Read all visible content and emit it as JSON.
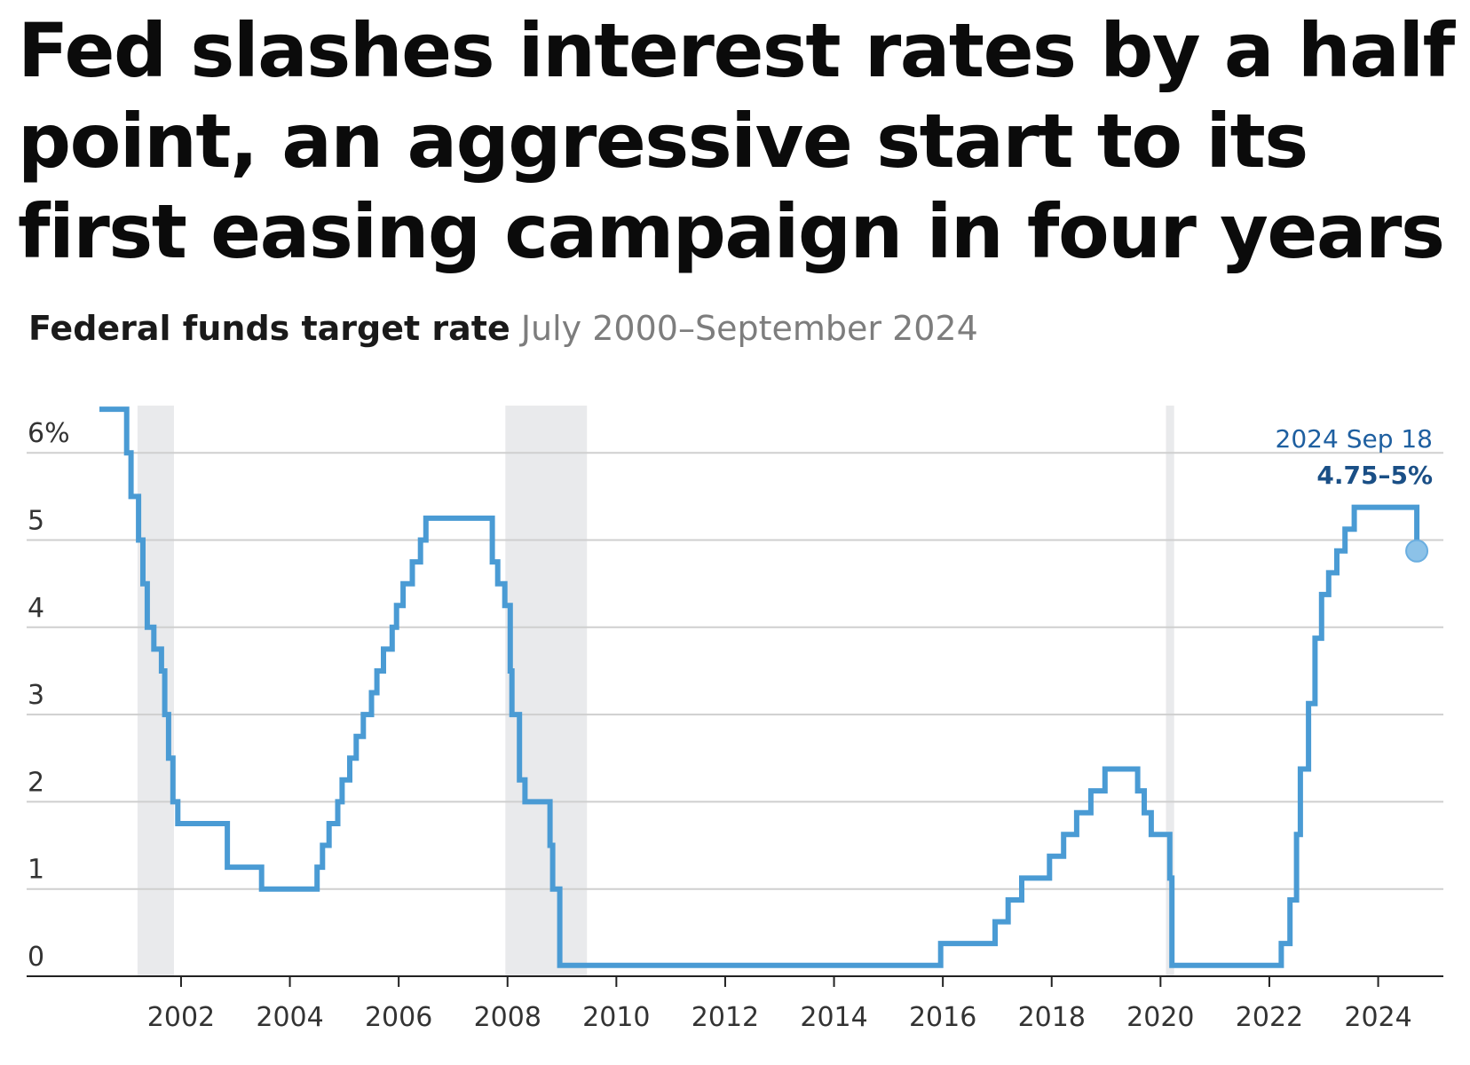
{
  "headline": "Fed slashes interest rates by a half point, an aggressive start to its first easing campaign in four years",
  "chart_data": {
    "type": "line",
    "title": "Federal funds target rate",
    "subtitle": "July 2000–September 2024",
    "xlabel": "",
    "ylabel": "",
    "xlim": [
      2000.5,
      2024.9
    ],
    "ylim": [
      0,
      6.5
    ],
    "x_ticks": [
      2002,
      2004,
      2006,
      2008,
      2010,
      2012,
      2014,
      2016,
      2018,
      2020,
      2022,
      2024
    ],
    "x_tick_labels": [
      "2002",
      "2004",
      "2006",
      "2008",
      "2010",
      "2012",
      "2014",
      "2016",
      "2018",
      "2020",
      "2022",
      "2024"
    ],
    "y_ticks": [
      0,
      1,
      2,
      3,
      4,
      5,
      6
    ],
    "y_tick_labels": [
      "0",
      "1",
      "2",
      "3",
      "4",
      "5",
      "6%"
    ],
    "grid": true,
    "line_color": "#4a9bd4",
    "recession_color": "#e9eaec",
    "recessions": [
      [
        2001.2,
        2001.87
      ],
      [
        2007.96,
        2009.46
      ],
      [
        2020.1,
        2020.25
      ]
    ],
    "series": [
      {
        "points": [
          [
            2000.5,
            6.5
          ],
          [
            2001.0,
            6.0
          ],
          [
            2001.08,
            5.5
          ],
          [
            2001.22,
            5.0
          ],
          [
            2001.3,
            4.5
          ],
          [
            2001.38,
            4.0
          ],
          [
            2001.5,
            3.75
          ],
          [
            2001.64,
            3.5
          ],
          [
            2001.7,
            3.0
          ],
          [
            2001.77,
            2.5
          ],
          [
            2001.85,
            2.0
          ],
          [
            2001.94,
            1.75
          ],
          [
            2002.85,
            1.25
          ],
          [
            2003.48,
            1.0
          ],
          [
            2004.5,
            1.25
          ],
          [
            2004.6,
            1.5
          ],
          [
            2004.72,
            1.75
          ],
          [
            2004.88,
            2.0
          ],
          [
            2004.96,
            2.25
          ],
          [
            2005.1,
            2.5
          ],
          [
            2005.22,
            2.75
          ],
          [
            2005.35,
            3.0
          ],
          [
            2005.5,
            3.25
          ],
          [
            2005.6,
            3.5
          ],
          [
            2005.72,
            3.75
          ],
          [
            2005.88,
            4.0
          ],
          [
            2005.96,
            4.25
          ],
          [
            2006.08,
            4.5
          ],
          [
            2006.25,
            4.75
          ],
          [
            2006.4,
            5.0
          ],
          [
            2006.5,
            5.25
          ],
          [
            2007.72,
            4.75
          ],
          [
            2007.82,
            4.5
          ],
          [
            2007.95,
            4.25
          ],
          [
            2008.05,
            3.5
          ],
          [
            2008.08,
            3.0
          ],
          [
            2008.22,
            2.25
          ],
          [
            2008.32,
            2.0
          ],
          [
            2008.78,
            1.5
          ],
          [
            2008.83,
            1.0
          ],
          [
            2008.96,
            0.125
          ],
          [
            2015.96,
            0.375
          ],
          [
            2016.96,
            0.625
          ],
          [
            2017.2,
            0.875
          ],
          [
            2017.45,
            1.125
          ],
          [
            2017.96,
            1.375
          ],
          [
            2018.22,
            1.625
          ],
          [
            2018.46,
            1.875
          ],
          [
            2018.72,
            2.125
          ],
          [
            2018.98,
            2.375
          ],
          [
            2019.58,
            2.125
          ],
          [
            2019.7,
            1.875
          ],
          [
            2019.83,
            1.625
          ],
          [
            2020.17,
            1.125
          ],
          [
            2020.21,
            0.125
          ],
          [
            2022.22,
            0.375
          ],
          [
            2022.38,
            0.875
          ],
          [
            2022.5,
            1.625
          ],
          [
            2022.57,
            2.375
          ],
          [
            2022.72,
            3.125
          ],
          [
            2022.84,
            3.875
          ],
          [
            2022.96,
            4.375
          ],
          [
            2023.09,
            4.625
          ],
          [
            2023.24,
            4.875
          ],
          [
            2023.39,
            5.125
          ],
          [
            2023.56,
            5.375
          ],
          [
            2024.71,
            4.875
          ]
        ]
      }
    ],
    "annotation": {
      "date": "2024 Sep 18",
      "value": "4.75–5%",
      "x": 2024.71,
      "y": 4.875
    }
  }
}
